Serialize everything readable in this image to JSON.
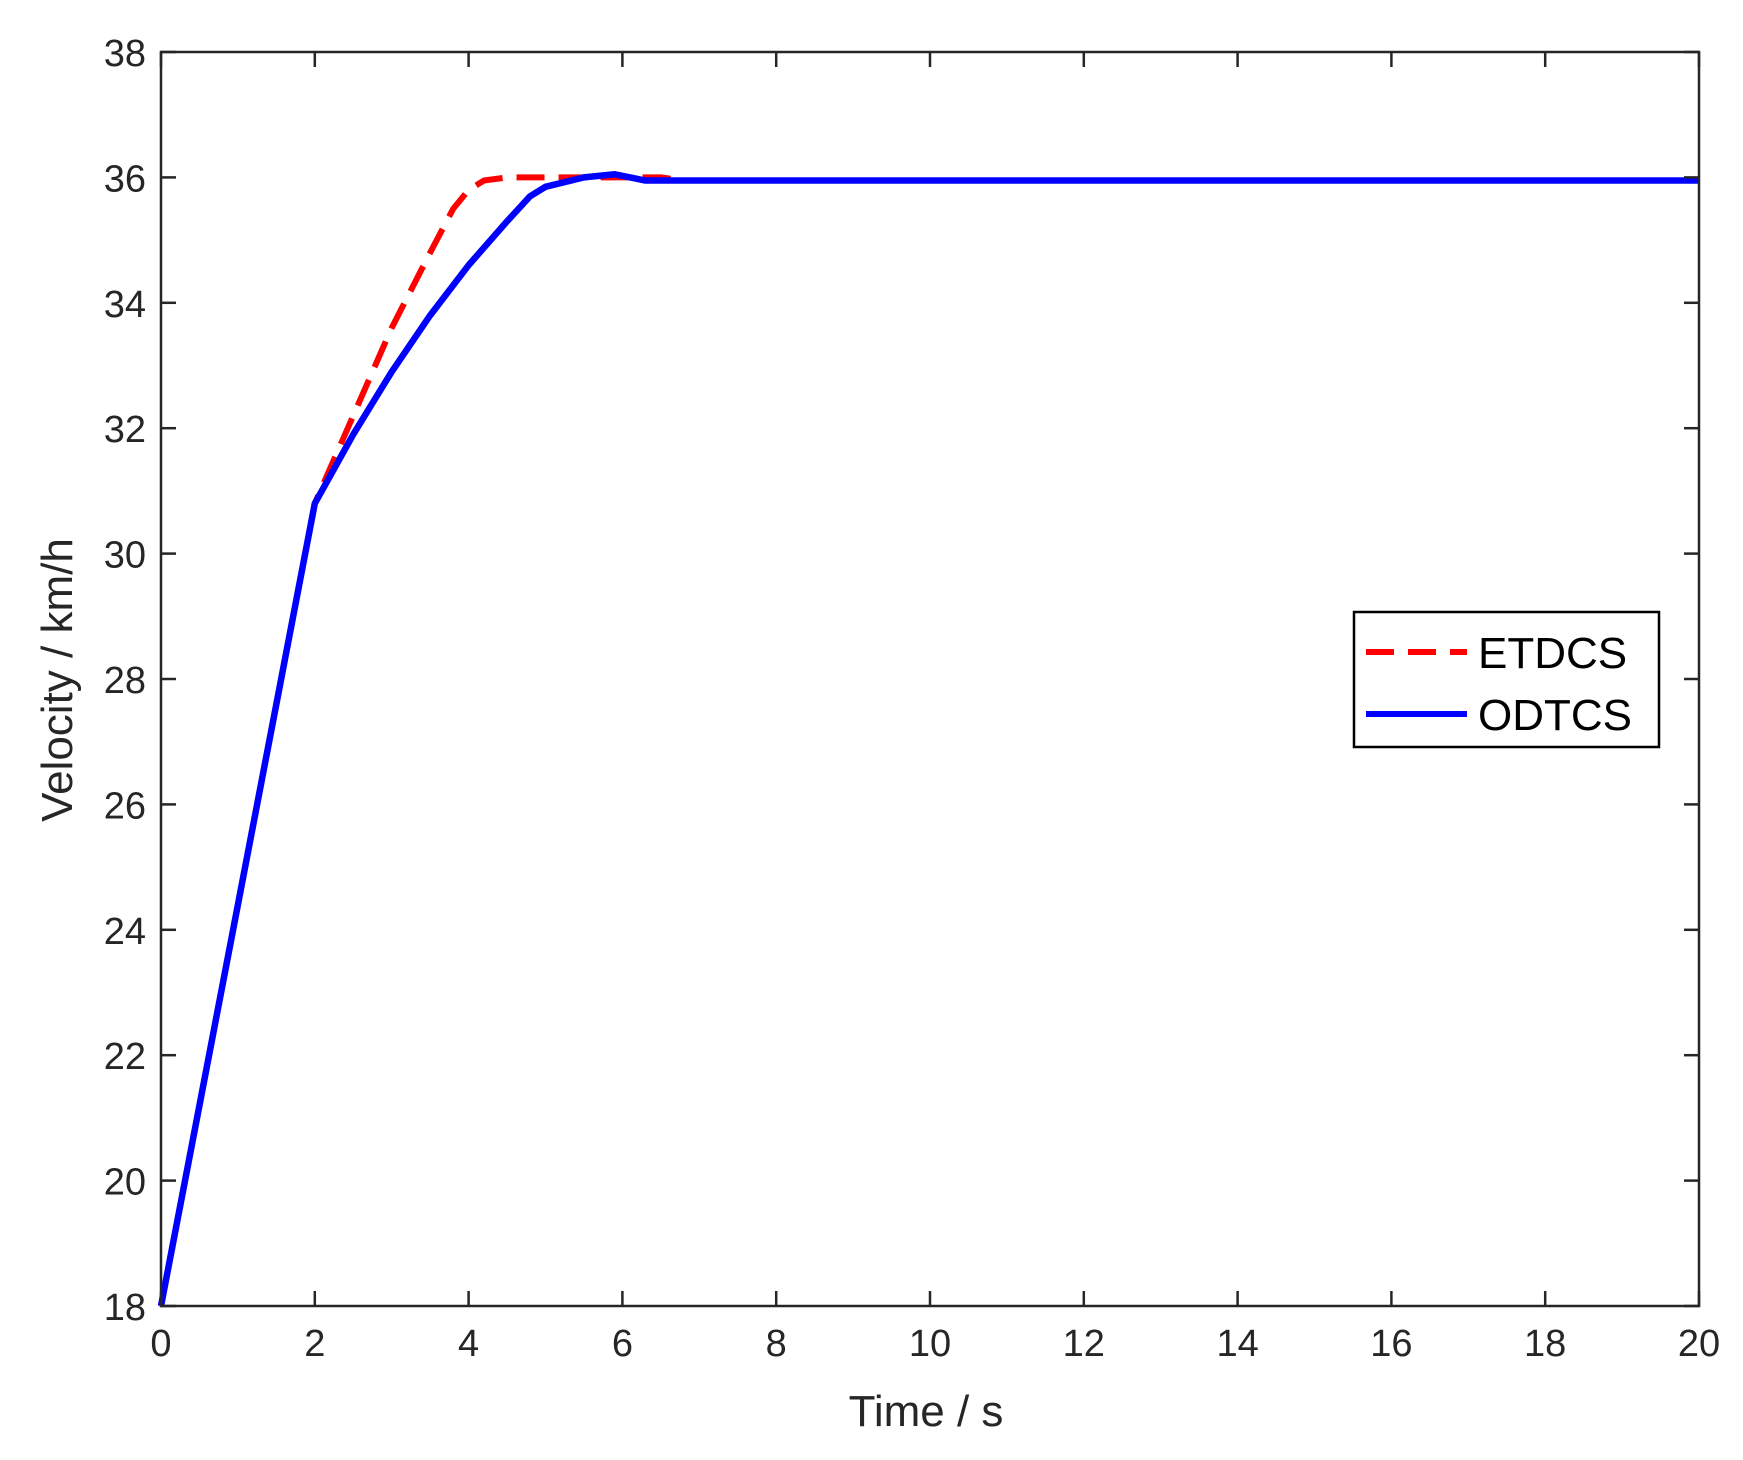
{
  "chart_data": {
    "type": "line",
    "xlabel": "Time / s",
    "ylabel": "Velocity / km/h",
    "xlim": [
      0,
      20
    ],
    "ylim": [
      18,
      38
    ],
    "xticks": [
      0,
      2,
      4,
      6,
      8,
      10,
      12,
      14,
      16,
      18,
      20
    ],
    "yticks": [
      18,
      20,
      22,
      24,
      26,
      28,
      30,
      32,
      34,
      36,
      38
    ],
    "grid": false,
    "legend_position": "right",
    "series": [
      {
        "name": "ETDCS",
        "color": "#ff0000",
        "style": "dashed",
        "points": [
          [
            0,
            18
          ],
          [
            0.5,
            21.2
          ],
          [
            1.0,
            24.4
          ],
          [
            1.5,
            27.6
          ],
          [
            2.0,
            30.8
          ],
          [
            2.5,
            32.2
          ],
          [
            3.0,
            33.6
          ],
          [
            3.5,
            34.8
          ],
          [
            3.8,
            35.5
          ],
          [
            4.0,
            35.8
          ],
          [
            4.2,
            35.95
          ],
          [
            4.5,
            36.0
          ],
          [
            5.0,
            36.0
          ],
          [
            5.5,
            36.0
          ],
          [
            6.0,
            36.0
          ],
          [
            6.5,
            36.0
          ],
          [
            6.8,
            35.95
          ],
          [
            7.0,
            35.95
          ],
          [
            10,
            35.95
          ],
          [
            14,
            35.95
          ],
          [
            20,
            35.95
          ]
        ]
      },
      {
        "name": "ODTCS",
        "color": "#0000ff",
        "style": "solid",
        "points": [
          [
            0,
            18
          ],
          [
            0.5,
            21.2
          ],
          [
            1.0,
            24.4
          ],
          [
            1.5,
            27.6
          ],
          [
            2.0,
            30.8
          ],
          [
            2.5,
            31.9
          ],
          [
            3.0,
            32.9
          ],
          [
            3.5,
            33.8
          ],
          [
            4.0,
            34.6
          ],
          [
            4.5,
            35.3
          ],
          [
            4.8,
            35.7
          ],
          [
            5.0,
            35.85
          ],
          [
            5.5,
            36.0
          ],
          [
            5.9,
            36.05
          ],
          [
            6.1,
            36.0
          ],
          [
            6.3,
            35.95
          ],
          [
            7.0,
            35.95
          ],
          [
            10,
            35.95
          ],
          [
            14,
            35.95
          ],
          [
            20,
            35.95
          ]
        ]
      }
    ]
  }
}
